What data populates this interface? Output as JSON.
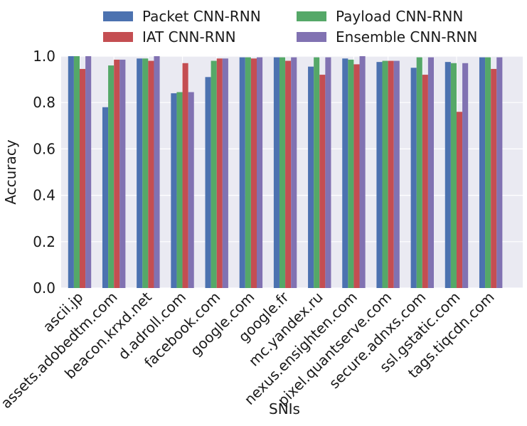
{
  "chart_data": {
    "type": "bar",
    "xlabel": "SNIs",
    "ylabel": "Accuracy",
    "ylim": [
      0,
      1
    ],
    "yticks": [
      0.0,
      0.2,
      0.4,
      0.6,
      0.8,
      1.0
    ],
    "ytick_labels": [
      "0.0",
      "0.2",
      "0.4",
      "0.6",
      "0.8",
      "1.0"
    ],
    "grid": true,
    "legend_position": "top",
    "categories": [
      "ascii.jp",
      "assets.adobedtm.com",
      "beacon.krxd.net",
      "d.adroll.com",
      "facebook.com",
      "google.com",
      "google.fr",
      "mc.yandex.ru",
      "nexus.ensighten.com",
      "pixel.quantserve.com",
      "secure.adnxs.com",
      "ssl.gstatic.com",
      "tags.tiqcdn.com"
    ],
    "series": [
      {
        "name": "Packet CNN-RNN",
        "color": "#4c72b0",
        "values": [
          1.0,
          0.78,
          0.99,
          0.84,
          0.91,
          0.995,
          0.995,
          0.955,
          0.99,
          0.975,
          0.95,
          0.975,
          0.995
        ]
      },
      {
        "name": "Payload CNN-RNN",
        "color": "#55a868",
        "values": [
          1.0,
          0.96,
          0.99,
          0.845,
          0.98,
          0.995,
          0.995,
          0.995,
          0.985,
          0.98,
          0.995,
          0.97,
          0.995
        ]
      },
      {
        "name": "IAT CNN-RNN",
        "color": "#c44e52",
        "values": [
          0.945,
          0.985,
          0.98,
          0.97,
          0.99,
          0.99,
          0.98,
          0.92,
          0.965,
          0.98,
          0.92,
          0.76,
          0.945
        ]
      },
      {
        "name": "Ensemble CNN-RNN",
        "color": "#8172b2",
        "values": [
          1.0,
          0.985,
          1.0,
          0.845,
          0.99,
          0.995,
          0.995,
          0.995,
          1.0,
          0.98,
          0.995,
          0.97,
          0.995
        ]
      }
    ]
  }
}
